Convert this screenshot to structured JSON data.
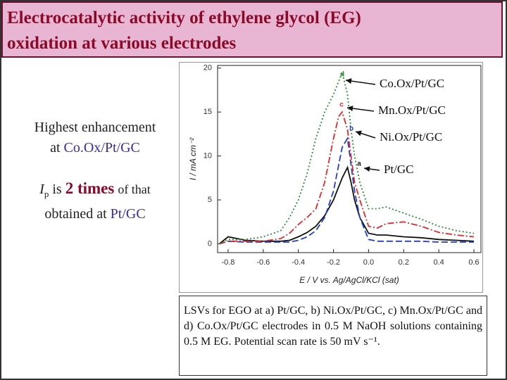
{
  "header": {
    "title_lines": [
      "Electrocatalytic activity of ethylene glycol (EG)",
      "oxidation at various electrodes"
    ]
  },
  "highlight": {
    "line1": "Highest enhancement",
    "line2_prefix": "at",
    "line2_emph": "Co.Ox/Pt/GC",
    "ip_symbol": "I",
    "ip_sub": "p",
    "ip_mid": "is",
    "ip_emph": "2 times",
    "ip_tail": "of that",
    "line4_prefix": "obtained at",
    "line4_emph": "Pt/GC"
  },
  "chart_data": {
    "type": "line",
    "x_label": "E / V vs. Ag/AgCl/KCl (sat)",
    "y_label": "I / mA cm⁻²",
    "x": [
      -0.85,
      -0.8,
      -0.7,
      -0.6,
      -0.5,
      -0.45,
      -0.4,
      -0.35,
      -0.3,
      -0.25,
      -0.2,
      -0.17,
      -0.15,
      -0.12,
      -0.1,
      -0.08,
      -0.05,
      0,
      0.05,
      0.1,
      0.2,
      0.3,
      0.4,
      0.5,
      0.6
    ],
    "series": [
      {
        "name": "Pt/GC",
        "label": "a",
        "color": "#111111",
        "linestyle": "solid",
        "values": [
          0,
          0.8,
          0.4,
          0.3,
          0.3,
          0.4,
          0.8,
          1.3,
          2,
          3.2,
          5,
          6.5,
          7.5,
          8.7,
          7,
          5,
          3,
          1.2,
          1,
          1,
          0.8,
          0.7,
          0.5,
          0.4,
          0.3
        ]
      },
      {
        "name": "Ni.Ox/Pt/GC",
        "label": "b",
        "color": "#2040c8",
        "linestyle": "dashed",
        "values": [
          0,
          0.3,
          0.2,
          0.2,
          0.2,
          0.2,
          0.4,
          0.8,
          1.5,
          3,
          6,
          9,
          11,
          12,
          9,
          6,
          3,
          0.5,
          0.3,
          0.3,
          0.3,
          0.3,
          0.2,
          0.2,
          0.2
        ]
      },
      {
        "name": "Mn.Ox/Pt/GC",
        "label": "c",
        "color": "#e02a2a",
        "linestyle": "dashdot",
        "values": [
          0,
          0.3,
          0.3,
          0.3,
          0.6,
          1.2,
          2.2,
          3,
          4,
          7,
          12,
          14.5,
          15,
          13,
          10,
          7,
          5,
          2,
          1.8,
          2.3,
          2.5,
          2,
          1.3,
          1,
          0.8
        ]
      },
      {
        "name": "Co.Ox/Pt/GC",
        "label": "d",
        "color": "#2e8b3a",
        "linestyle": "dotted",
        "values": [
          0,
          0.5,
          0.5,
          0.8,
          1.5,
          3,
          5,
          8,
          12,
          15,
          17,
          18.5,
          19.5,
          17,
          13,
          10,
          7,
          4,
          4,
          4.2,
          3.5,
          2.8,
          2,
          1.5,
          1.2
        ]
      }
    ],
    "xlim": [
      -0.86,
      0.64
    ],
    "ylim": [
      -1,
      20.3
    ],
    "xticks": [
      -0.8,
      -0.6,
      -0.4,
      -0.2,
      {
        "value": 0,
        "label": "0.0"
      },
      0.2,
      0.4,
      0.6
    ],
    "yticks": [
      0,
      5,
      10,
      15,
      20
    ]
  },
  "caption": "LSVs for EGO at a) Pt/GC, b) Ni.Ox/Pt/GC, c) Mn.Ox/Pt/GC and d) Co.Ox/Pt/GC electrodes in 0.5 M NaOH solutions containing 0.5 M EG. Potential scan rate is 50 mV s⁻¹."
}
